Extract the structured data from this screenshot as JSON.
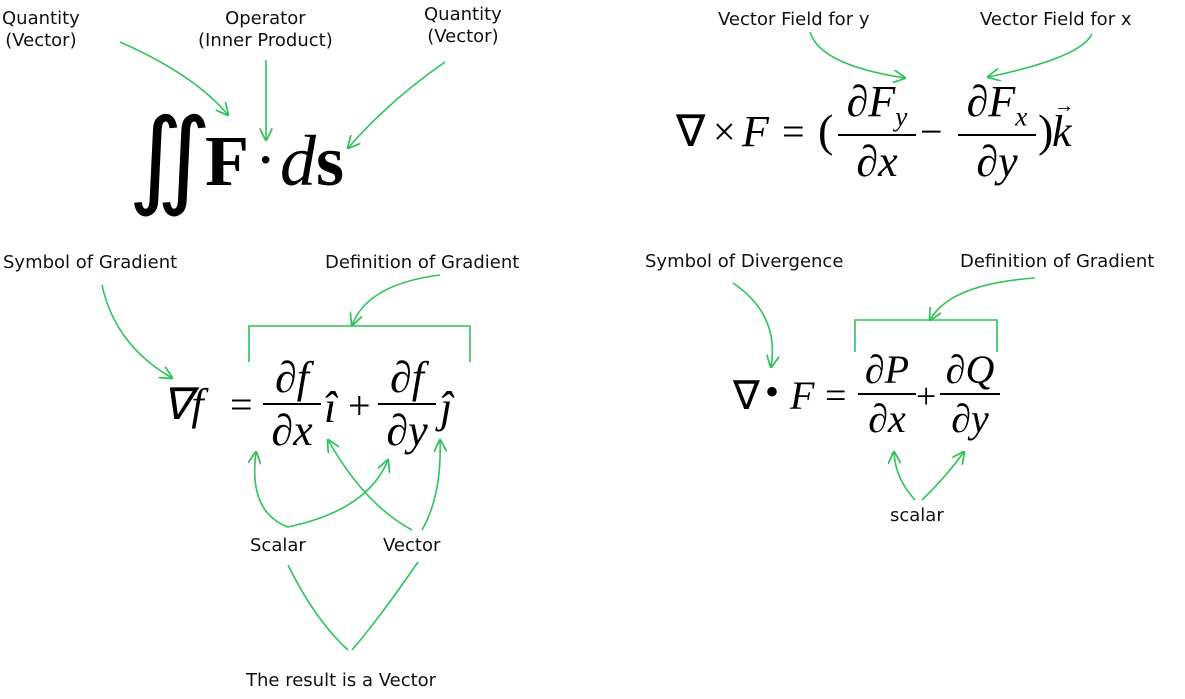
{
  "colors": {
    "arrow": "#2ec35a",
    "text": "#111111"
  },
  "surface_integral": {
    "label_left": [
      "Quantity",
      "(Vector)"
    ],
    "label_operator": [
      "Operator",
      "(Inner Product)"
    ],
    "label_right": [
      "Quantity",
      "(Vector)"
    ],
    "integral": "∬",
    "vector_F": "F",
    "dot": "·",
    "d": "d",
    "s": "s"
  },
  "curl": {
    "label_vf_y": "Vector Field for y",
    "label_vf_x": "Vector Field for x",
    "nabla": "∇",
    "cross": "×",
    "F": "F",
    "eq": "=",
    "open_paren": "(",
    "term1_num": "∂F",
    "term1_sub": "y",
    "term1_den": "∂x",
    "minus": "−",
    "term2_num": "∂F",
    "term2_sub": "x",
    "term2_den": "∂y",
    "close_paren": ")",
    "k_vec": "k",
    "k_arrow": "→"
  },
  "gradient": {
    "label_symbol": "Symbol of Gradient",
    "label_definition": "Definition of Gradient",
    "nabla_f": "∇f",
    "eq": "=",
    "num1": "∂f",
    "den1": "∂x",
    "i_hat": "î",
    "plus": "+",
    "num2": "∂f",
    "den2": "∂y",
    "j_hat": "ĵ",
    "label_scalar": "Scalar",
    "label_vector": "Vector",
    "label_result": "The result is a Vector"
  },
  "divergence": {
    "label_symbol": "Symbol of Divergence",
    "label_definition": "Definition of Gradient",
    "nabla": "∇",
    "bullet": "•",
    "F": "F",
    "eq": "=",
    "num1": "∂P",
    "den1": "∂x",
    "plus": "+",
    "num2": "∂Q",
    "den2": "∂y",
    "label_scalar": "scalar"
  }
}
